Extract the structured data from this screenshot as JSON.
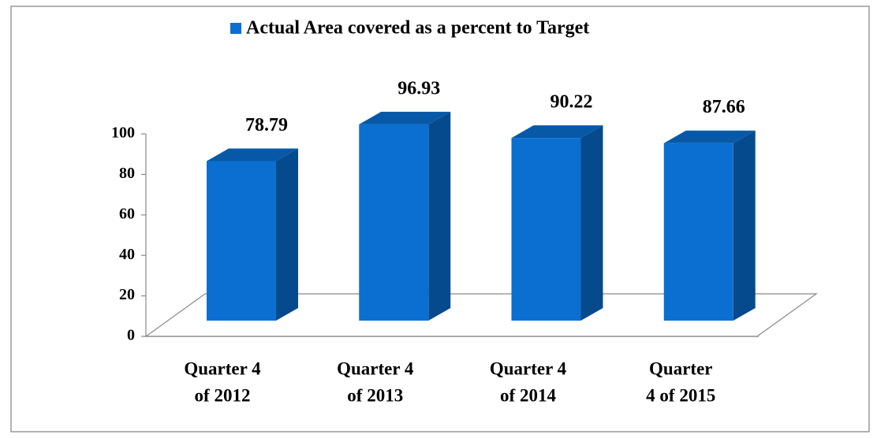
{
  "chart_data": {
    "type": "bar3d",
    "legend": "top",
    "series": [
      {
        "name": "Actual Area covered as a percent to Target",
        "color": "#0a6fd0",
        "values": [
          78.79,
          96.93,
          90.22,
          87.66
        ]
      }
    ],
    "categories": [
      [
        "Quarter 4",
        "of 2012"
      ],
      [
        "Quarter 4",
        "of 2013"
      ],
      [
        "Quarter 4",
        "of 2014"
      ],
      [
        "Quarter",
        "4 of 2015"
      ]
    ],
    "ylim": [
      0,
      100
    ],
    "yticks": [
      0,
      20,
      40,
      60,
      80,
      100
    ]
  }
}
